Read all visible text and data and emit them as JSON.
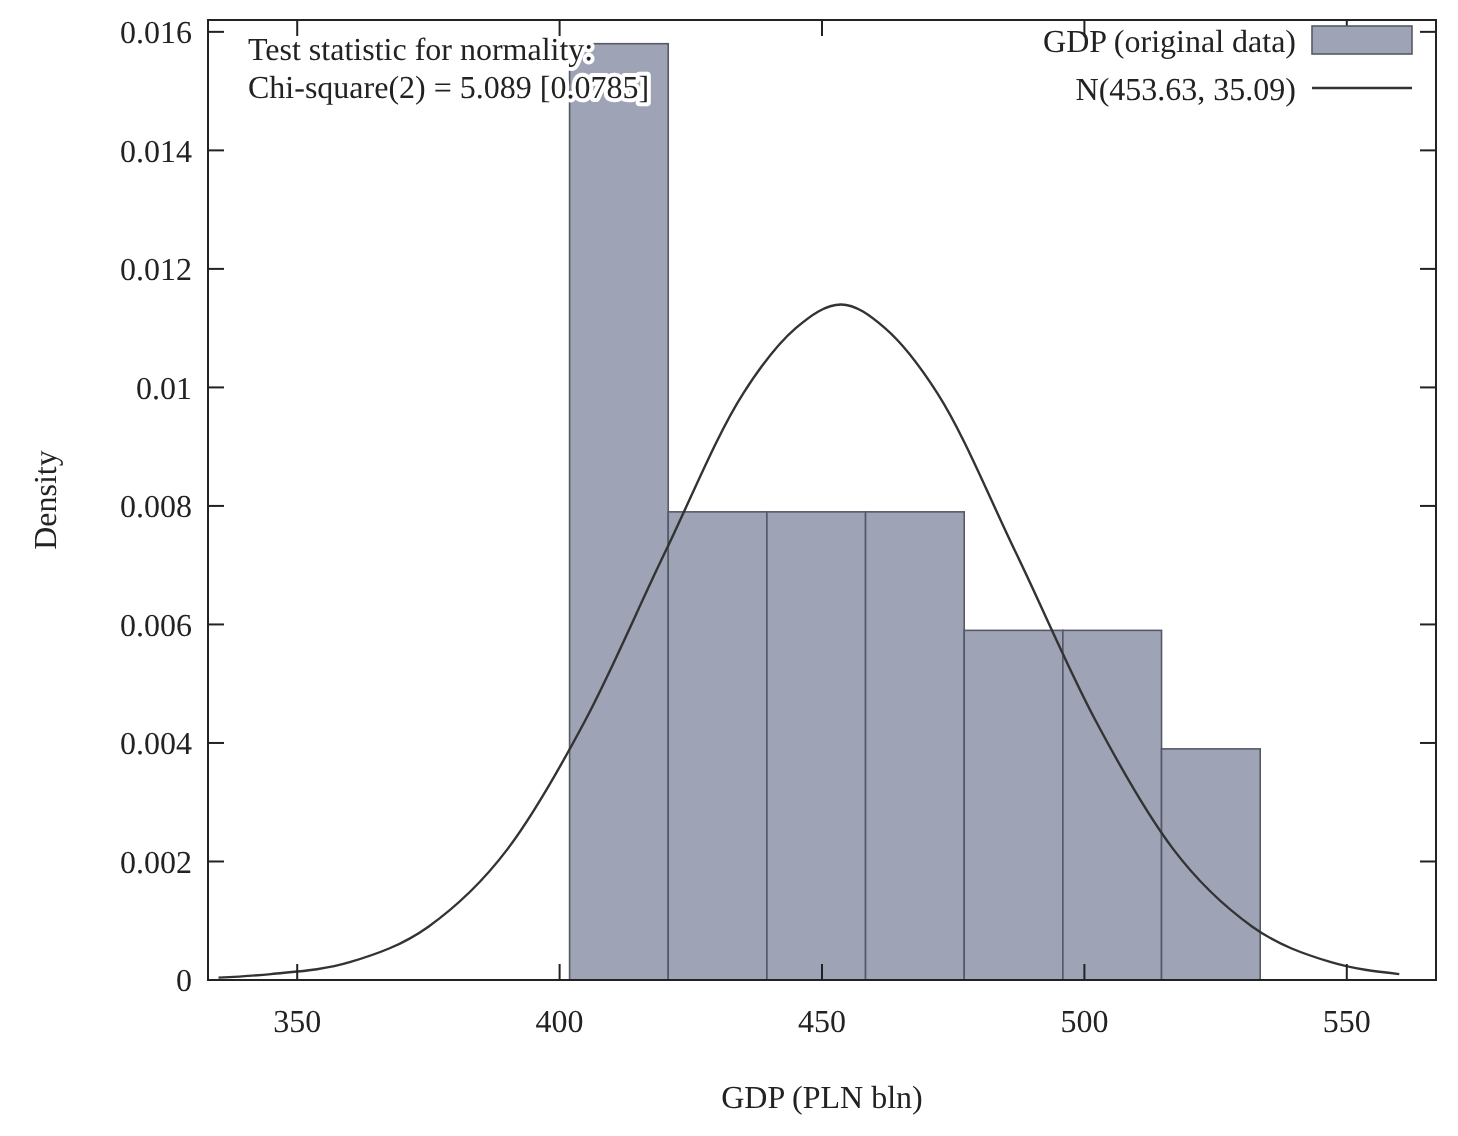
{
  "chart_data": {
    "type": "histogram",
    "xlabel": "GDP (PLN bln)",
    "ylabel": "Density",
    "annotations": [
      "Test statistic for normality:",
      "Chi-square(2) = 5.089 [0.0785]"
    ],
    "bins": [
      401.9,
      420.7,
      439.5,
      458.3,
      477.1,
      495.9,
      514.7,
      533.5
    ],
    "xlim": [
      333,
      567
    ],
    "xticks": [
      350,
      400,
      450,
      500,
      550
    ],
    "ylim": [
      0,
      0.0162
    ],
    "yticks": [
      0,
      0.002,
      0.004,
      0.006,
      0.008,
      0.01,
      0.012,
      0.014,
      0.016
    ],
    "grid": false,
    "legend": "top right",
    "series": [
      {
        "name": "GDP (original data)",
        "color": "#9ea4b5",
        "values": [
          0.0158,
          0.0079,
          0.0079,
          0.0079,
          0.0059,
          0.0059,
          0.0039
        ]
      },
      {
        "name": "N(453.63, 35.09)",
        "type": "line",
        "color": "#333333",
        "x": [
          335,
          345,
          360,
          375,
          390,
          405,
          420,
          435,
          445,
          453.63,
          462,
          472,
          487,
          502,
          517,
          532,
          547,
          560
        ],
        "values": [
          4e-05,
          0.0001,
          0.0003,
          0.0009,
          0.0022,
          0.0044,
          0.0072,
          0.0099,
          0.011,
          0.0114,
          0.011,
          0.0099,
          0.0072,
          0.0044,
          0.0022,
          0.0009,
          0.0003,
          0.0001
        ]
      }
    ]
  }
}
